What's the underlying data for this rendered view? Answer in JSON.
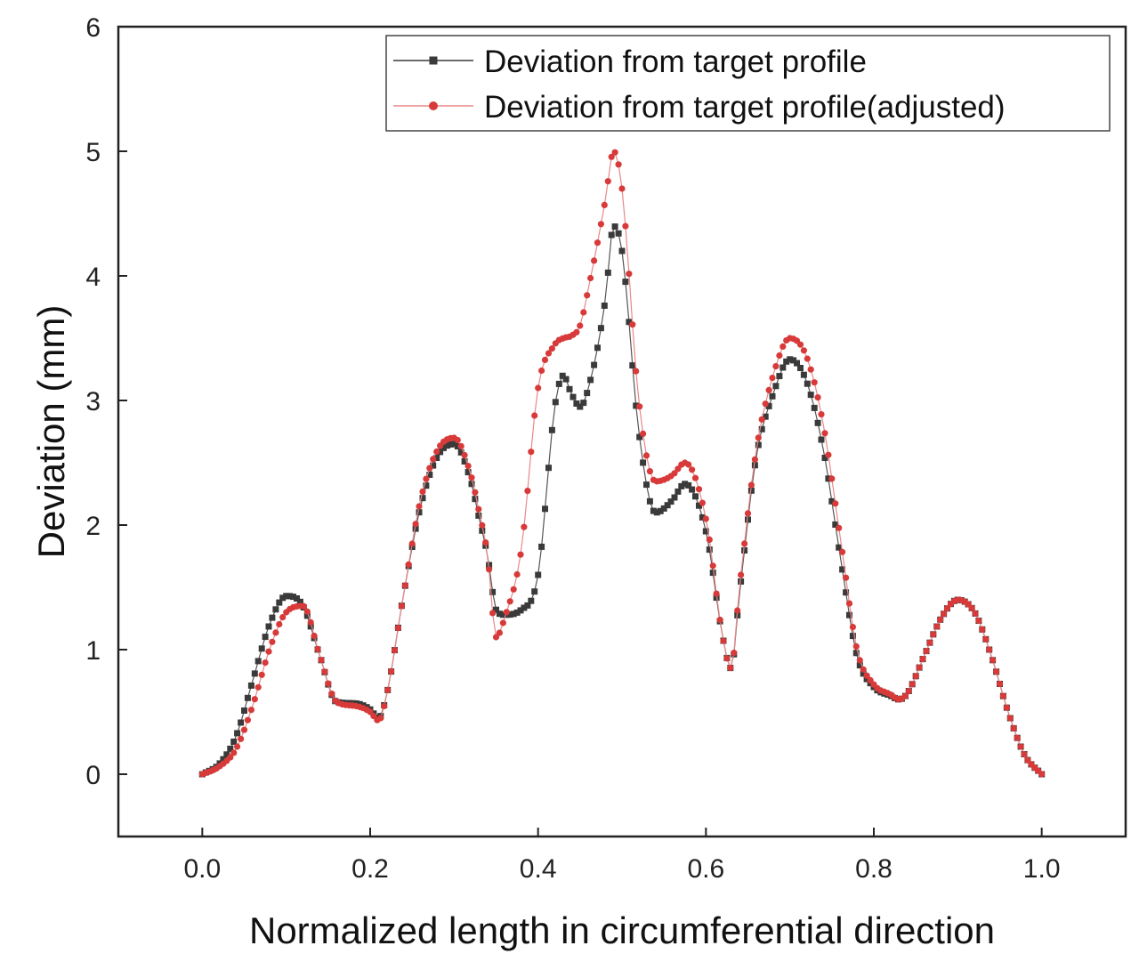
{
  "chart_data": {
    "type": "line",
    "title": "",
    "xlabel": "Normalized length in circumferential direction",
    "ylabel": "Deviation (mm)",
    "xlim": [
      -0.1,
      1.1
    ],
    "ylim": [
      -0.5,
      6
    ],
    "xticks": [
      0.0,
      0.2,
      0.4,
      0.6,
      0.8,
      1.0
    ],
    "xtick_labels": [
      "0.0",
      "0.2",
      "0.4",
      "0.6",
      "0.8",
      "1.0"
    ],
    "yticks": [
      0,
      1,
      2,
      3,
      4,
      5,
      6
    ],
    "ytick_labels": [
      "0",
      "1",
      "2",
      "3",
      "4",
      "5",
      "6"
    ],
    "legend_position": "top-right",
    "series": [
      {
        "name": "Deviation from target profile",
        "color": "#3a3a3a",
        "marker": "square",
        "x": [
          0.0,
          0.02,
          0.04,
          0.06,
          0.08,
          0.1,
          0.12,
          0.14,
          0.16,
          0.18,
          0.2,
          0.21,
          0.22,
          0.24,
          0.26,
          0.28,
          0.3,
          0.32,
          0.33,
          0.34,
          0.35,
          0.36,
          0.38,
          0.4,
          0.42,
          0.43,
          0.44,
          0.45,
          0.46,
          0.48,
          0.49,
          0.5,
          0.52,
          0.54,
          0.56,
          0.575,
          0.6,
          0.62,
          0.63,
          0.64,
          0.66,
          0.68,
          0.7,
          0.72,
          0.74,
          0.76,
          0.78,
          0.8,
          0.82,
          0.83,
          0.84,
          0.86,
          0.88,
          0.9,
          0.92,
          0.94,
          0.96,
          0.98,
          1.0
        ],
        "y": [
          0.0,
          0.08,
          0.3,
          0.75,
          1.2,
          1.43,
          1.35,
          0.95,
          0.58,
          0.57,
          0.52,
          0.45,
          0.65,
          1.45,
          2.15,
          2.55,
          2.65,
          2.35,
          2.05,
          1.75,
          1.32,
          1.28,
          1.32,
          1.6,
          2.95,
          3.2,
          3.05,
          2.95,
          3.1,
          3.8,
          4.4,
          4.2,
          2.75,
          2.1,
          2.2,
          2.33,
          1.95,
          1.1,
          0.85,
          1.45,
          2.55,
          3.05,
          3.33,
          3.15,
          2.6,
          1.75,
          0.95,
          0.7,
          0.63,
          0.6,
          0.65,
          0.95,
          1.25,
          1.4,
          1.3,
          0.95,
          0.5,
          0.15,
          0.0
        ]
      },
      {
        "name": "Deviation from target profile(adjusted)",
        "color": "#d83a3a",
        "marker": "circle",
        "x": [
          0.0,
          0.02,
          0.04,
          0.06,
          0.08,
          0.1,
          0.12,
          0.14,
          0.16,
          0.18,
          0.2,
          0.21,
          0.22,
          0.24,
          0.26,
          0.28,
          0.3,
          0.32,
          0.33,
          0.34,
          0.35,
          0.36,
          0.38,
          0.4,
          0.42,
          0.43,
          0.44,
          0.45,
          0.46,
          0.48,
          0.49,
          0.5,
          0.52,
          0.54,
          0.56,
          0.575,
          0.6,
          0.62,
          0.63,
          0.64,
          0.66,
          0.68,
          0.7,
          0.72,
          0.74,
          0.76,
          0.78,
          0.8,
          0.82,
          0.83,
          0.84,
          0.86,
          0.88,
          0.9,
          0.92,
          0.94,
          0.96,
          0.98,
          1.0
        ],
        "y": [
          0.0,
          0.06,
          0.2,
          0.55,
          1.0,
          1.3,
          1.35,
          0.95,
          0.58,
          0.55,
          0.5,
          0.43,
          0.65,
          1.45,
          2.2,
          2.6,
          2.7,
          2.4,
          2.1,
          1.75,
          1.1,
          1.25,
          1.8,
          3.1,
          3.45,
          3.5,
          3.52,
          3.6,
          3.9,
          4.6,
          5.0,
          4.7,
          3.0,
          2.35,
          2.4,
          2.5,
          2.05,
          1.1,
          0.85,
          1.5,
          2.6,
          3.2,
          3.5,
          3.35,
          2.8,
          1.9,
          1.0,
          0.72,
          0.64,
          0.6,
          0.65,
          0.95,
          1.25,
          1.4,
          1.3,
          0.95,
          0.5,
          0.15,
          0.0
        ]
      }
    ]
  }
}
